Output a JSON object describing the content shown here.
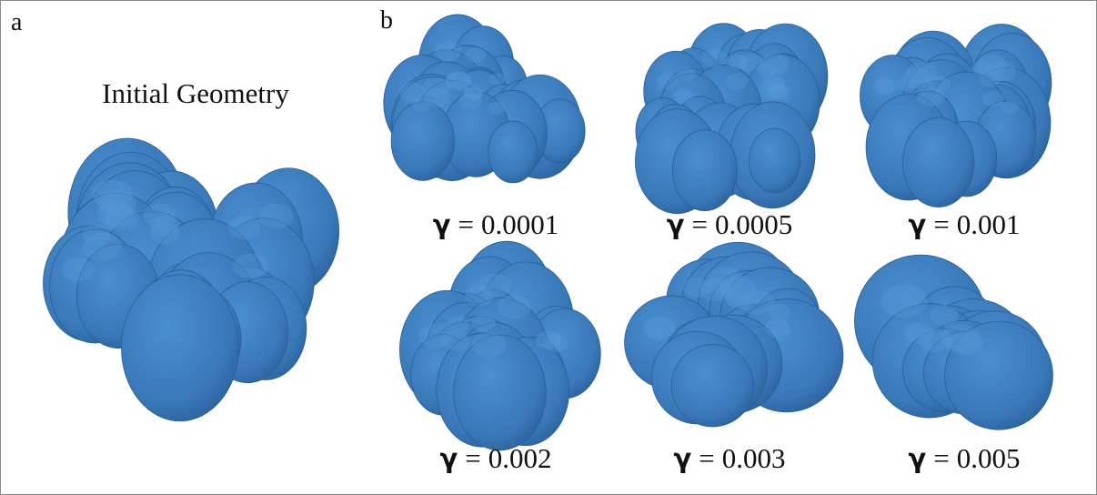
{
  "panel_a": {
    "label": "a",
    "title": "Initial Geometry"
  },
  "panel_b": {
    "label": "b",
    "panels": [
      {
        "symbol": "γ",
        "relation": "=",
        "value": "0.0001"
      },
      {
        "symbol": "γ",
        "relation": "=",
        "value": "0.0005"
      },
      {
        "symbol": "γ",
        "relation": "=",
        "value": "0.001"
      },
      {
        "symbol": "γ",
        "relation": "=",
        "value": "0.002"
      },
      {
        "symbol": "γ",
        "relation": "=",
        "value": "0.003"
      },
      {
        "symbol": "γ",
        "relation": "=",
        "value": "0.005"
      }
    ]
  }
}
